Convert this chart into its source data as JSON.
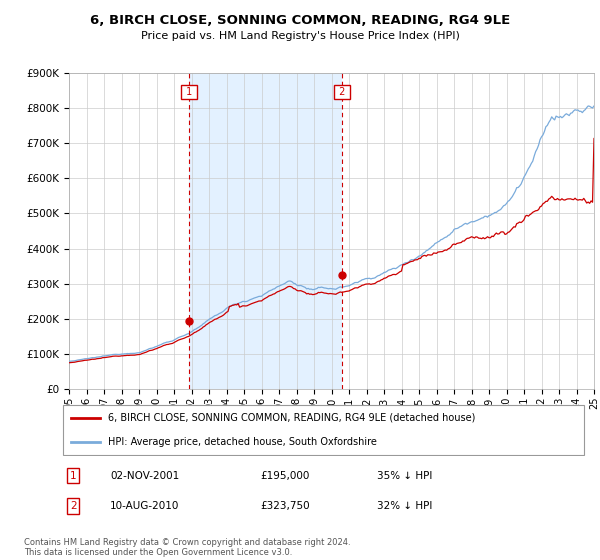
{
  "title": "6, BIRCH CLOSE, SONNING COMMON, READING, RG4 9LE",
  "subtitle": "Price paid vs. HM Land Registry's House Price Index (HPI)",
  "y_min": 0,
  "y_max": 900000,
  "y_ticks": [
    0,
    100000,
    200000,
    300000,
    400000,
    500000,
    600000,
    700000,
    800000,
    900000
  ],
  "y_tick_labels": [
    "£0",
    "£100K",
    "£200K",
    "£300K",
    "£400K",
    "£500K",
    "£600K",
    "£700K",
    "£800K",
    "£900K"
  ],
  "hpi_color": "#7aabdb",
  "price_color": "#cc0000",
  "shade_color": "#ddeeff",
  "marker1_year": 2001.84,
  "marker1_price": 195000,
  "marker1_label": "02-NOV-2001",
  "marker1_amount": "£195,000",
  "marker1_pct": "35% ↓ HPI",
  "marker2_year": 2010.6,
  "marker2_price": 323750,
  "marker2_label": "10-AUG-2010",
  "marker2_amount": "£323,750",
  "marker2_pct": "32% ↓ HPI",
  "legend_property": "6, BIRCH CLOSE, SONNING COMMON, READING, RG4 9LE (detached house)",
  "legend_hpi": "HPI: Average price, detached house, South Oxfordshire",
  "footnote": "Contains HM Land Registry data © Crown copyright and database right 2024.\nThis data is licensed under the Open Government Licence v3.0.",
  "plot_bg_color": "#ffffff",
  "grid_color": "#cccccc",
  "vline_color": "#cc0000",
  "box_color": "#cc0000"
}
